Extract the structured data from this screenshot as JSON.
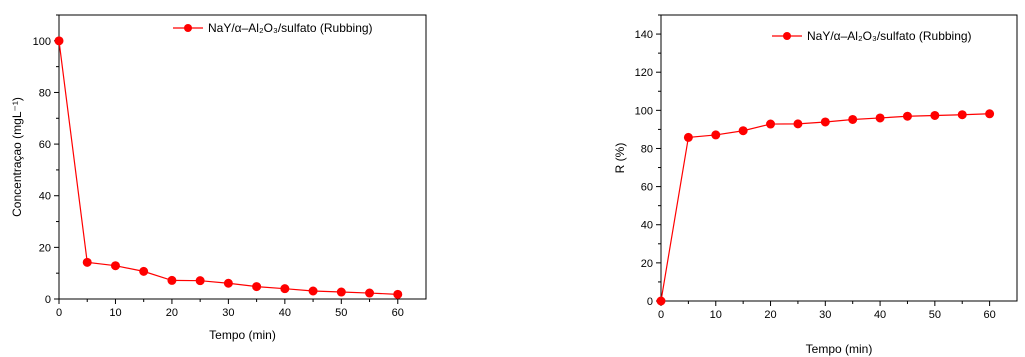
{
  "chart_data": [
    {
      "type": "line",
      "x": [
        0,
        5,
        10,
        15,
        20,
        25,
        30,
        35,
        40,
        45,
        50,
        55,
        60
      ],
      "series": [
        {
          "name": "NaY/α–Al₂O₃/sulfato (Rubbing)",
          "values": [
            100,
            14.2,
            12.9,
            10.7,
            7.2,
            7.1,
            6.1,
            4.8,
            4.0,
            3.1,
            2.7,
            2.3,
            1.8
          ]
        }
      ],
      "xlabel": "Tempo (min)",
      "ylabel": "Concentraçao (mgL⁻¹)",
      "xlim": [
        0,
        65
      ],
      "ylim": [
        0,
        110
      ],
      "xticks": [
        0,
        10,
        20,
        30,
        40,
        50,
        60
      ],
      "yticks": [
        0,
        20,
        40,
        60,
        80,
        100
      ],
      "legend": "top-right",
      "color": "#ff0000"
    },
    {
      "type": "line",
      "x": [
        0,
        5,
        10,
        15,
        20,
        25,
        30,
        35,
        40,
        45,
        50,
        55,
        60
      ],
      "series": [
        {
          "name": "NaY/α–Al₂O₃/sulfato (Rubbing)",
          "values": [
            0,
            85.8,
            87.1,
            89.3,
            92.8,
            92.9,
            93.9,
            95.2,
            96.0,
            96.9,
            97.3,
            97.7,
            98.2
          ]
        }
      ],
      "xlabel": "Tempo (min)",
      "ylabel": "R (%)",
      "xlim": [
        0,
        65
      ],
      "ylim": [
        0,
        150
      ],
      "xticks": [
        0,
        10,
        20,
        30,
        40,
        50,
        60
      ],
      "yticks": [
        0,
        20,
        40,
        60,
        80,
        100,
        120,
        140
      ],
      "legend": "top-right",
      "color": "#ff0000"
    }
  ]
}
